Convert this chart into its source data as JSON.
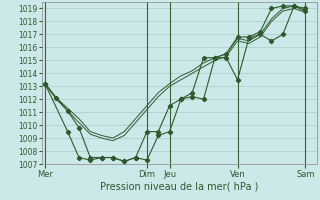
{
  "xlabel": "Pression niveau de la mer( hPa )",
  "ylim": [
    1007,
    1019.5
  ],
  "yticks": [
    1007,
    1008,
    1009,
    1010,
    1011,
    1012,
    1013,
    1014,
    1015,
    1016,
    1017,
    1018,
    1019
  ],
  "day_labels": [
    "Mer",
    "Dim",
    "Jeu",
    "Ven",
    "Sam"
  ],
  "day_positions": [
    0,
    9,
    11,
    17,
    23
  ],
  "xlim": [
    -0.3,
    24.0
  ],
  "background_color": "#cce8e8",
  "grid_color": "#aacccc",
  "vline_color": "#336633",
  "line_color": "#2d5a2d",
  "series": [
    {
      "x": [
        0,
        1,
        2,
        3,
        4,
        5,
        6,
        7,
        8,
        9,
        10,
        11,
        12,
        13,
        14,
        15,
        16,
        17,
        18,
        19,
        20,
        21,
        22,
        23
      ],
      "y": [
        1013.2,
        1012.1,
        1011.3,
        1010.5,
        1009.5,
        1009.2,
        1009.0,
        1009.5,
        1010.5,
        1011.5,
        1012.5,
        1013.2,
        1013.8,
        1014.2,
        1014.8,
        1015.2,
        1015.5,
        1016.7,
        1016.5,
        1017.0,
        1018.2,
        1019.0,
        1019.2,
        1018.8
      ]
    },
    {
      "x": [
        0,
        1,
        2,
        3,
        4,
        5,
        6,
        7,
        8,
        9,
        10,
        11,
        12,
        13,
        14,
        15,
        16,
        17,
        18,
        19,
        20,
        21,
        22,
        23
      ],
      "y": [
        1013.2,
        1012.0,
        1011.1,
        1010.2,
        1009.3,
        1009.0,
        1008.8,
        1009.2,
        1010.2,
        1011.2,
        1012.2,
        1013.0,
        1013.5,
        1014.0,
        1014.5,
        1015.0,
        1015.3,
        1016.5,
        1016.3,
        1016.8,
        1018.0,
        1018.8,
        1019.0,
        1018.7
      ]
    },
    {
      "x": [
        0,
        1,
        2,
        3,
        4,
        5,
        6,
        7,
        8,
        9,
        10,
        11,
        12,
        13,
        14,
        15,
        16,
        17,
        18,
        19,
        20,
        21,
        22,
        23
      ],
      "y": [
        1013.2,
        1012.1,
        1011.1,
        1009.8,
        1007.5,
        1007.5,
        1007.5,
        1007.2,
        1007.5,
        1007.3,
        1009.2,
        1009.5,
        1012.0,
        1012.2,
        1012.0,
        1015.2,
        1015.2,
        1013.5,
        1016.7,
        1017.0,
        1016.5,
        1017.0,
        1019.2,
        1019.0
      ]
    },
    {
      "x": [
        0,
        2,
        3,
        4,
        5,
        6,
        7,
        8,
        9,
        10,
        11,
        12,
        13,
        14,
        15,
        16,
        17,
        18,
        19,
        20,
        21,
        22,
        23
      ],
      "y": [
        1013.2,
        1009.5,
        1007.5,
        1007.3,
        1007.5,
        1007.5,
        1007.2,
        1007.5,
        1009.5,
        1009.5,
        1011.5,
        1012.0,
        1012.5,
        1015.2,
        1015.2,
        1015.5,
        1016.8,
        1016.8,
        1017.2,
        1019.0,
        1019.2,
        1019.2,
        1018.8
      ]
    }
  ]
}
